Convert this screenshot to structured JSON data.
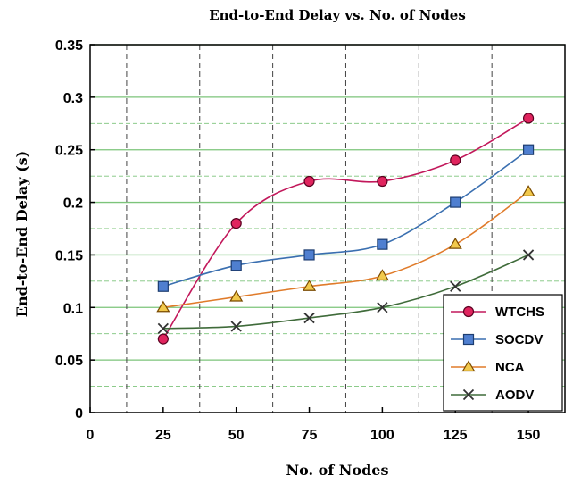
{
  "chart_data": {
    "type": "line",
    "title": "End-to-End  Delay vs. No. of Nodes",
    "xlabel": "No. of Nodes",
    "ylabel": "End-to-End  Delay (s)",
    "xlim": [
      0,
      162.5
    ],
    "ylim": [
      0,
      0.35
    ],
    "x_ticks": [
      0,
      25,
      50,
      75,
      100,
      125,
      150
    ],
    "x_tick_labels": [
      "0",
      "25",
      "50",
      "75",
      "100",
      "125",
      "150"
    ],
    "y_ticks": [
      0,
      0.05,
      0.1,
      0.15,
      0.2,
      0.25,
      0.3,
      0.35
    ],
    "y_tick_labels": [
      "0",
      "0.05",
      "0.1",
      "0.15",
      "0.2",
      "0.25",
      "0.3",
      "0.35"
    ],
    "grid": true,
    "legend_position": "bottom-right",
    "x": [
      25,
      50,
      75,
      100,
      125,
      150
    ],
    "series": [
      {
        "name": "WTCHS",
        "values": [
          0.07,
          0.18,
          0.22,
          0.22,
          0.24,
          0.28
        ],
        "color": "#c2185b",
        "marker": "circle",
        "marker_fill": "#e0245e"
      },
      {
        "name": "SOCDV",
        "values": [
          0.12,
          0.14,
          0.15,
          0.16,
          0.2,
          0.25
        ],
        "color": "#3a6fb0",
        "marker": "square",
        "marker_fill": "#4f7fd0"
      },
      {
        "name": "NCA",
        "values": [
          0.1,
          0.11,
          0.12,
          0.13,
          0.16,
          0.21
        ],
        "color": "#e07b2a",
        "marker": "triangle",
        "marker_fill": "#f2c94c"
      },
      {
        "name": "AODV",
        "values": [
          0.08,
          0.082,
          0.09,
          0.1,
          0.12,
          0.15
        ],
        "color": "#3f6b3a",
        "marker": "x",
        "marker_fill": "#333333"
      }
    ]
  }
}
